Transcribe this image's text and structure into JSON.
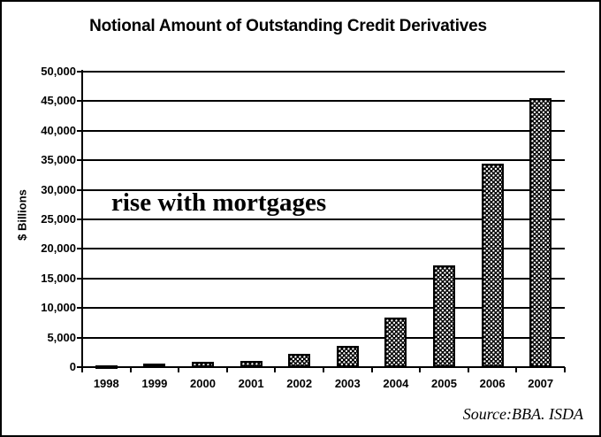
{
  "title": "Notional Amount of Outstanding Credit Derivatives",
  "annotation": "rise with mortgages",
  "source": "Source:BBA. ISDA",
  "colors": {
    "background": "#ffffff",
    "bar": "#000000",
    "bar_pattern_dots": "#ffffff",
    "text": "#000000",
    "grid": "#000000",
    "border": "#000000"
  },
  "chart_data": {
    "type": "bar",
    "title": "Notional Amount of Outstanding Credit Derivatives",
    "categories": [
      "1998",
      "1999",
      "2000",
      "2001",
      "2002",
      "2003",
      "2004",
      "2005",
      "2006",
      "2007"
    ],
    "values": [
      350,
      600,
      900,
      1000,
      2200,
      3600,
      8400,
      17200,
      34400,
      45500
    ],
    "xlabel": "",
    "ylabel": "$ Billions",
    "ylim": [
      0,
      50000
    ],
    "ytick_interval": 5000,
    "ytick_labels": [
      "0",
      "5,000",
      "10,000",
      "15,000",
      "20,000",
      "25,000",
      "30,000",
      "35,000",
      "40,000",
      "45,000",
      "50,000"
    ],
    "grid": true,
    "legend": "none",
    "bar_pattern": "white-dots-on-black",
    "annotation": "rise with mortgages",
    "source": "Source:BBA. ISDA"
  }
}
